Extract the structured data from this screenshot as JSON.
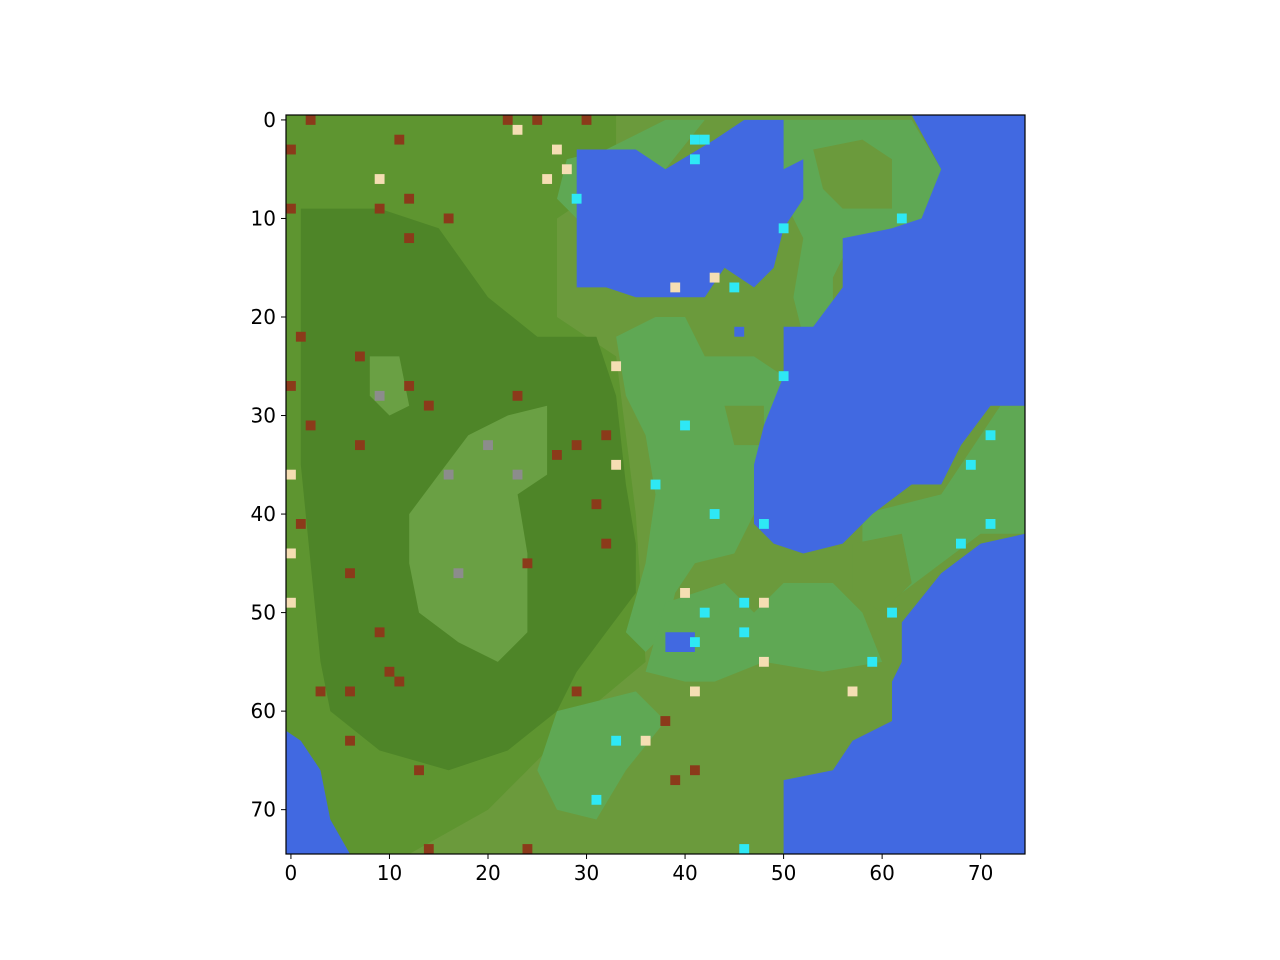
{
  "map": {
    "type": "heatmap",
    "grid": {
      "rows": 75,
      "cols": 75
    },
    "xlim": [
      -0.5,
      74.5
    ],
    "ylim": [
      74.5,
      -0.5
    ],
    "x_ticks": [
      "0",
      "10",
      "20",
      "30",
      "40",
      "50",
      "60",
      "70"
    ],
    "y_ticks": [
      "0",
      "10",
      "20",
      "30",
      "40",
      "50",
      "60",
      "70"
    ],
    "terrain_colors": {
      "water": "#4169e1",
      "grassland": "#5fa854",
      "plains": "#6b9a3c",
      "meadow": "#5e9530",
      "forest": "#4e8528",
      "clearing": "#6aa044",
      "frame": "#000000"
    },
    "marker_colors": {
      "settlement": "#f5deb3",
      "red_site": "#8b3a1a",
      "spring": "#2ee8f5",
      "stone": "#8c8c8c"
    },
    "markers": [
      {
        "type": "red_site",
        "x": 2,
        "y": 0
      },
      {
        "type": "red_site",
        "x": 22,
        "y": 0
      },
      {
        "type": "red_site",
        "x": 25,
        "y": 0
      },
      {
        "type": "red_site",
        "x": 30,
        "y": 0
      },
      {
        "type": "settlement",
        "x": 23,
        "y": 1
      },
      {
        "type": "red_site",
        "x": 0,
        "y": 3
      },
      {
        "type": "red_site",
        "x": 11,
        "y": 2
      },
      {
        "type": "spring",
        "x": 41,
        "y": 2
      },
      {
        "type": "spring",
        "x": 42,
        "y": 2
      },
      {
        "type": "spring",
        "x": 41,
        "y": 4
      },
      {
        "type": "settlement",
        "x": 27,
        "y": 3
      },
      {
        "type": "settlement",
        "x": 28,
        "y": 5
      },
      {
        "type": "settlement",
        "x": 9,
        "y": 6
      },
      {
        "type": "settlement",
        "x": 26,
        "y": 6
      },
      {
        "type": "red_site",
        "x": 12,
        "y": 8
      },
      {
        "type": "spring",
        "x": 29,
        "y": 8
      },
      {
        "type": "red_site",
        "x": 0,
        "y": 9
      },
      {
        "type": "red_site",
        "x": 9,
        "y": 9
      },
      {
        "type": "red_site",
        "x": 16,
        "y": 10
      },
      {
        "type": "spring",
        "x": 62,
        "y": 10
      },
      {
        "type": "spring",
        "x": 50,
        "y": 11
      },
      {
        "type": "red_site",
        "x": 12,
        "y": 12
      },
      {
        "type": "settlement",
        "x": 43,
        "y": 16
      },
      {
        "type": "settlement",
        "x": 39,
        "y": 17
      },
      {
        "type": "spring",
        "x": 45,
        "y": 17
      },
      {
        "type": "red_site",
        "x": 1,
        "y": 22
      },
      {
        "type": "red_site",
        "x": 7,
        "y": 24
      },
      {
        "type": "settlement",
        "x": 33,
        "y": 25
      },
      {
        "type": "spring",
        "x": 50,
        "y": 26
      },
      {
        "type": "red_site",
        "x": 0,
        "y": 27
      },
      {
        "type": "red_site",
        "x": 12,
        "y": 27
      },
      {
        "type": "stone",
        "x": 9,
        "y": 28
      },
      {
        "type": "red_site",
        "x": 23,
        "y": 28
      },
      {
        "type": "red_site",
        "x": 14,
        "y": 29
      },
      {
        "type": "red_site",
        "x": 2,
        "y": 31
      },
      {
        "type": "spring",
        "x": 40,
        "y": 31
      },
      {
        "type": "red_site",
        "x": 32,
        "y": 32
      },
      {
        "type": "spring",
        "x": 71,
        "y": 32
      },
      {
        "type": "red_site",
        "x": 7,
        "y": 33
      },
      {
        "type": "stone",
        "x": 20,
        "y": 33
      },
      {
        "type": "red_site",
        "x": 29,
        "y": 33
      },
      {
        "type": "red_site",
        "x": 27,
        "y": 34
      },
      {
        "type": "settlement",
        "x": 33,
        "y": 35
      },
      {
        "type": "spring",
        "x": 69,
        "y": 35
      },
      {
        "type": "settlement",
        "x": 0,
        "y": 36
      },
      {
        "type": "stone",
        "x": 16,
        "y": 36
      },
      {
        "type": "stone",
        "x": 23,
        "y": 36
      },
      {
        "type": "spring",
        "x": 37,
        "y": 37
      },
      {
        "type": "red_site",
        "x": 31,
        "y": 39
      },
      {
        "type": "spring",
        "x": 43,
        "y": 40
      },
      {
        "type": "red_site",
        "x": 1,
        "y": 41
      },
      {
        "type": "spring",
        "x": 48,
        "y": 41
      },
      {
        "type": "spring",
        "x": 71,
        "y": 41
      },
      {
        "type": "red_site",
        "x": 32,
        "y": 43
      },
      {
        "type": "spring",
        "x": 68,
        "y": 43
      },
      {
        "type": "settlement",
        "x": 0,
        "y": 44
      },
      {
        "type": "red_site",
        "x": 24,
        "y": 45
      },
      {
        "type": "red_site",
        "x": 6,
        "y": 46
      },
      {
        "type": "stone",
        "x": 17,
        "y": 46
      },
      {
        "type": "settlement",
        "x": 40,
        "y": 48
      },
      {
        "type": "settlement",
        "x": 0,
        "y": 49
      },
      {
        "type": "spring",
        "x": 46,
        "y": 49
      },
      {
        "type": "settlement",
        "x": 48,
        "y": 49
      },
      {
        "type": "spring",
        "x": 42,
        "y": 50
      },
      {
        "type": "spring",
        "x": 61,
        "y": 50
      },
      {
        "type": "red_site",
        "x": 9,
        "y": 52
      },
      {
        "type": "spring",
        "x": 46,
        "y": 52
      },
      {
        "type": "spring",
        "x": 41,
        "y": 53
      },
      {
        "type": "settlement",
        "x": 48,
        "y": 55
      },
      {
        "type": "spring",
        "x": 59,
        "y": 55
      },
      {
        "type": "red_site",
        "x": 10,
        "y": 56
      },
      {
        "type": "red_site",
        "x": 11,
        "y": 57
      },
      {
        "type": "red_site",
        "x": 3,
        "y": 58
      },
      {
        "type": "red_site",
        "x": 6,
        "y": 58
      },
      {
        "type": "red_site",
        "x": 29,
        "y": 58
      },
      {
        "type": "settlement",
        "x": 41,
        "y": 58
      },
      {
        "type": "settlement",
        "x": 57,
        "y": 58
      },
      {
        "type": "red_site",
        "x": 38,
        "y": 61
      },
      {
        "type": "red_site",
        "x": 6,
        "y": 63
      },
      {
        "type": "spring",
        "x": 33,
        "y": 63
      },
      {
        "type": "settlement",
        "x": 36,
        "y": 63
      },
      {
        "type": "red_site",
        "x": 13,
        "y": 66
      },
      {
        "type": "red_site",
        "x": 41,
        "y": 66
      },
      {
        "type": "red_site",
        "x": 39,
        "y": 67
      },
      {
        "type": "spring",
        "x": 31,
        "y": 69
      },
      {
        "type": "red_site",
        "x": 14,
        "y": 74
      },
      {
        "type": "red_site",
        "x": 24,
        "y": 74
      },
      {
        "type": "spring",
        "x": 46,
        "y": 74
      }
    ]
  }
}
